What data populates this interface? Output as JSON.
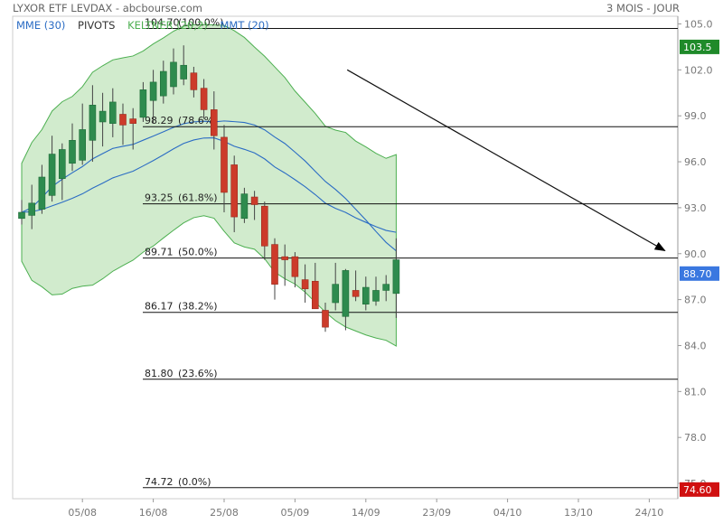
{
  "header": {
    "title": "LYXOR ETF LEVDAX - abcbourse.com",
    "period": "3 MOIS - JOUR"
  },
  "legend": [
    {
      "label": "MME (30)",
      "color": "#2b6cc4"
    },
    {
      "label": "PIVOTS",
      "color": "#333333"
    },
    {
      "label": "KELTNER (20,2)",
      "color": "#4caf50"
    },
    {
      "label": "MMT (20)",
      "color": "#2b6cc4"
    }
  ],
  "colors": {
    "up": "#2e8b4e",
    "down": "#cc3b2a",
    "channel_fill": "#c9e8c4",
    "channel_line": "#4caf50",
    "ma": "#2b6cc4",
    "last_price_badge": "#3a78e0",
    "high_badge": "#1f8a2a",
    "low_badge": "#d01010"
  },
  "chart_data": {
    "type": "candlestick",
    "ylim": [
      74.0,
      105.5
    ],
    "y_ticks": [
      75,
      78,
      81,
      84,
      87,
      90,
      93,
      96,
      99,
      102,
      105
    ],
    "y_tick_labels": [
      "75.0",
      "78.0",
      "81.0",
      "84.0",
      "87.0",
      "90.0",
      "93.0",
      "96.0",
      "99.0",
      "102.0",
      "105.0"
    ],
    "x_tick_labels": [
      {
        "label": "05/08",
        "index": 6
      },
      {
        "label": "16/08",
        "index": 13
      },
      {
        "label": "25/08",
        "index": 20
      },
      {
        "label": "05/09",
        "index": 27
      },
      {
        "label": "14/09",
        "index": 34
      },
      {
        "label": "23/09",
        "index": 41
      },
      {
        "label": "04/10",
        "index": 48
      },
      {
        "label": "13/10",
        "index": 55
      },
      {
        "label": "24/10",
        "index": 62
      }
    ],
    "candles": [
      {
        "o": 92.3,
        "h": 93.5,
        "l": 91.9,
        "c": 92.7
      },
      {
        "o": 92.5,
        "h": 94.5,
        "l": 91.6,
        "c": 93.3
      },
      {
        "o": 92.9,
        "h": 95.8,
        "l": 92.6,
        "c": 95.0
      },
      {
        "o": 93.8,
        "h": 97.7,
        "l": 93.4,
        "c": 96.5
      },
      {
        "o": 94.9,
        "h": 97.2,
        "l": 93.5,
        "c": 96.8
      },
      {
        "o": 95.9,
        "h": 98.5,
        "l": 95.4,
        "c": 97.4
      },
      {
        "o": 96.1,
        "h": 99.8,
        "l": 95.8,
        "c": 98.1
      },
      {
        "o": 97.4,
        "h": 101.0,
        "l": 96.0,
        "c": 99.7
      },
      {
        "o": 98.6,
        "h": 100.5,
        "l": 97.0,
        "c": 99.3
      },
      {
        "o": 98.5,
        "h": 100.8,
        "l": 97.6,
        "c": 99.9
      },
      {
        "o": 99.1,
        "h": 99.8,
        "l": 97.1,
        "c": 98.4
      },
      {
        "o": 98.8,
        "h": 99.5,
        "l": 96.8,
        "c": 98.5
      },
      {
        "o": 98.9,
        "h": 101.2,
        "l": 98.6,
        "c": 100.7
      },
      {
        "o": 100.0,
        "h": 102.0,
        "l": 98.5,
        "c": 101.2
      },
      {
        "o": 100.3,
        "h": 102.6,
        "l": 99.8,
        "c": 101.9
      },
      {
        "o": 100.9,
        "h": 103.4,
        "l": 100.4,
        "c": 102.5
      },
      {
        "o": 101.4,
        "h": 103.6,
        "l": 101.0,
        "c": 102.3
      },
      {
        "o": 101.8,
        "h": 102.2,
        "l": 100.2,
        "c": 100.7
      },
      {
        "o": 100.8,
        "h": 101.4,
        "l": 98.8,
        "c": 99.4
      },
      {
        "o": 99.4,
        "h": 100.6,
        "l": 96.8,
        "c": 97.7
      },
      {
        "o": 97.6,
        "h": 98.4,
        "l": 92.7,
        "c": 94.0
      },
      {
        "o": 95.8,
        "h": 96.4,
        "l": 91.4,
        "c": 92.4
      },
      {
        "o": 92.3,
        "h": 94.3,
        "l": 92.0,
        "c": 93.9
      },
      {
        "o": 93.7,
        "h": 94.1,
        "l": 92.2,
        "c": 93.2
      },
      {
        "o": 93.1,
        "h": 93.4,
        "l": 89.6,
        "c": 90.5
      },
      {
        "o": 90.6,
        "h": 91.0,
        "l": 87.0,
        "c": 88.0
      },
      {
        "o": 89.8,
        "h": 90.6,
        "l": 87.9,
        "c": 89.6
      },
      {
        "o": 89.8,
        "h": 90.1,
        "l": 87.8,
        "c": 88.5
      },
      {
        "o": 88.3,
        "h": 89.3,
        "l": 86.8,
        "c": 87.7
      },
      {
        "o": 88.2,
        "h": 89.4,
        "l": 86.6,
        "c": 86.4
      },
      {
        "o": 86.3,
        "h": 86.8,
        "l": 84.9,
        "c": 85.2
      },
      {
        "o": 86.8,
        "h": 89.4,
        "l": 86.3,
        "c": 88.0
      },
      {
        "o": 85.9,
        "h": 89.0,
        "l": 85.0,
        "c": 88.9
      },
      {
        "o": 87.6,
        "h": 88.9,
        "l": 86.9,
        "c": 87.2
      },
      {
        "o": 86.7,
        "h": 88.5,
        "l": 86.3,
        "c": 87.8
      },
      {
        "o": 86.9,
        "h": 88.5,
        "l": 86.6,
        "c": 87.6
      },
      {
        "o": 87.6,
        "h": 88.6,
        "l": 86.9,
        "c": 88.0
      },
      {
        "o": 87.4,
        "h": 91.0,
        "l": 85.8,
        "c": 89.6
      }
    ],
    "band_upper": [],
    "band_lower": [],
    "ma_fast": [],
    "ma_slow": [],
    "pivots": [
      {
        "label": "104.70",
        "pct": "(100.0%)",
        "value": 104.7
      },
      {
        "label": "98.29",
        "pct": "(78.6%)",
        "value": 98.29
      },
      {
        "label": "93.25",
        "pct": "(61.8%)",
        "value": 93.25
      },
      {
        "label": "89.71",
        "pct": "(50.0%)",
        "value": 89.71
      },
      {
        "label": "86.17",
        "pct": "(38.2%)",
        "value": 86.17
      },
      {
        "label": "81.80",
        "pct": "(23.6%)",
        "value": 81.8
      },
      {
        "label": "74.72",
        "pct": "(0.0%)",
        "value": 74.72
      }
    ],
    "price_badges": [
      {
        "label": "103.5",
        "value": 103.5,
        "role": "high"
      },
      {
        "label": "88.70",
        "value": 88.7,
        "role": "last"
      },
      {
        "label": "74.60",
        "value": 74.6,
        "role": "low"
      }
    ],
    "trend_arrow": {
      "from": [
        21,
        102.0
      ],
      "to": [
        43,
        90.2
      ]
    }
  }
}
